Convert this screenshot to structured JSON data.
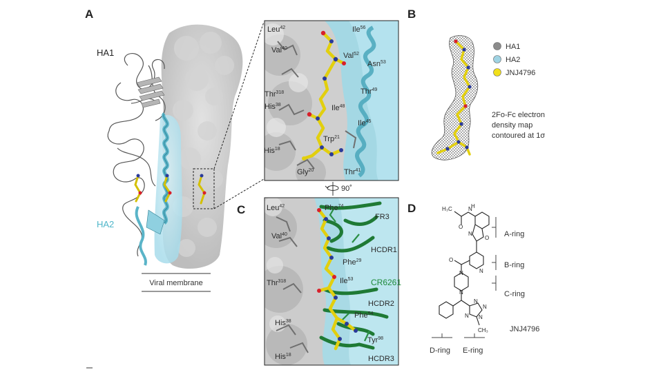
{
  "panels": {
    "a": {
      "letter": "A",
      "ha1": "HA1",
      "ha2": "HA2",
      "membrane": "Viral membrane"
    },
    "a_inset": {
      "residues": [
        {
          "name": "Leu",
          "num": "42"
        },
        {
          "name": "Val",
          "num": "40"
        },
        {
          "name": "Thr",
          "num": "318"
        },
        {
          "name": "His",
          "num": "38"
        },
        {
          "name": "His",
          "num": "18"
        },
        {
          "name": "Gly",
          "num": "20"
        },
        {
          "name": "Thr",
          "num": "41"
        },
        {
          "name": "Trp",
          "num": "21"
        },
        {
          "name": "Ile",
          "num": "48"
        },
        {
          "name": "Ile",
          "num": "45"
        },
        {
          "name": "Thr",
          "num": "49"
        },
        {
          "name": "Asn",
          "num": "53"
        },
        {
          "name": "Val",
          "num": "52"
        },
        {
          "name": "Ile",
          "num": "56"
        }
      ],
      "rotation": "90˚"
    },
    "b": {
      "letter": "B",
      "legend": [
        "HA1",
        "HA2",
        "JNJ4796"
      ],
      "legend_colors": [
        "#8c8c8c",
        "#9fd3e3",
        "#f2e01a"
      ],
      "caption": [
        "2Fo-Fc electron",
        "density map",
        "contoured at 1σ"
      ]
    },
    "c": {
      "letter": "C",
      "residues": [
        {
          "name": "Leu",
          "num": "42"
        },
        {
          "name": "Val",
          "num": "40"
        },
        {
          "name": "Thr",
          "num": "318"
        },
        {
          "name": "His",
          "num": "38"
        },
        {
          "name": "His",
          "num": "18"
        },
        {
          "name": "Phe",
          "num": "74"
        },
        {
          "name": "Phe",
          "num": "29"
        },
        {
          "name": "Ile",
          "num": "53"
        },
        {
          "name": "Phe",
          "num": "54"
        },
        {
          "name": "Tyr",
          "num": "98"
        }
      ],
      "regions": [
        "FR3",
        "HCDR1",
        "HCDR2",
        "HCDR3"
      ],
      "antibody": "CR6261"
    },
    "d": {
      "letter": "D",
      "rings": [
        "A-ring",
        "B-ring",
        "C-ring",
        "D-ring",
        "E-ring"
      ],
      "compound": "JNJ4796",
      "atoms": {
        "acetyl": "H₃C",
        "o": "O",
        "n": "N",
        "nh": "H",
        "methyl": "CH₃"
      }
    }
  },
  "colors": {
    "ha1": "#9a9a9a",
    "ha2": "#8fd0e0",
    "ligand": "#f2e01a",
    "nitrogen": "#2a3a9a",
    "oxygen": "#d8202a",
    "antibody": "#1f7a35"
  }
}
